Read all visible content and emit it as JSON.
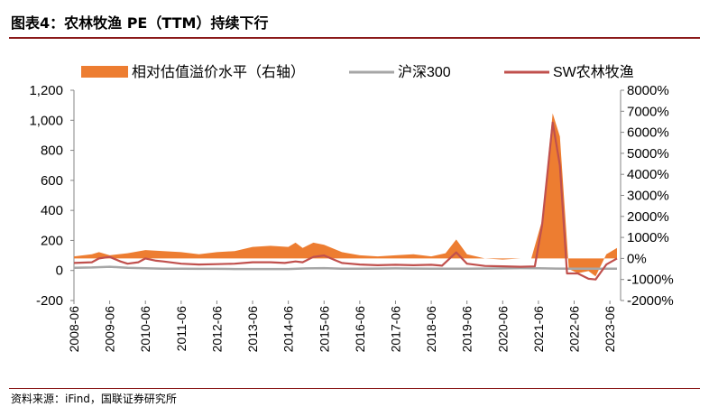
{
  "figure": {
    "title": "图表4：农林牧渔 PE（TTM）持续下行",
    "source": "资料来源：iFind，国联证券研究所"
  },
  "chart_data": {
    "type": "line",
    "legend": [
      {
        "name": "相对估值溢价水平（右轴）",
        "kind": "area",
        "color": "#ed7d31"
      },
      {
        "name": "沪深300",
        "kind": "line",
        "color": "#a6a6a6"
      },
      {
        "name": "SW农林牧渔",
        "kind": "line",
        "color": "#c0504d"
      }
    ],
    "x_tick_labels": [
      "2008-06",
      "2009-06",
      "2010-06",
      "2011-06",
      "2012-06",
      "2013-06",
      "2014-06",
      "2015-06",
      "2016-06",
      "2017-06",
      "2018-06",
      "2019-06",
      "2020-06",
      "2021-06",
      "2022-06",
      "2023-06"
    ],
    "x_range": [
      2008.5,
      2023.8
    ],
    "left_axis": {
      "ylim": [
        -200,
        1200
      ],
      "ticks": [
        -200,
        0,
        200,
        400,
        600,
        800,
        1000,
        1200
      ],
      "tick_labels": [
        "-200",
        "0",
        "200",
        "400",
        "600",
        "800",
        "1,000",
        "1,200"
      ]
    },
    "right_axis": {
      "ylim": [
        -2000,
        8000
      ],
      "ticks": [
        -2000,
        -1000,
        0,
        1000,
        2000,
        3000,
        4000,
        5000,
        6000,
        7000,
        8000
      ],
      "tick_labels": [
        "-2000%",
        "-1000%",
        "0%",
        "1000%",
        "2000%",
        "3000%",
        "4000%",
        "5000%",
        "6000%",
        "7000%",
        "8000%"
      ]
    },
    "series": [
      {
        "name": "相对估值溢价水平（右轴）",
        "axis": "right",
        "points": [
          [
            2008.5,
            100
          ],
          [
            2009.0,
            200
          ],
          [
            2009.2,
            300
          ],
          [
            2009.5,
            150
          ],
          [
            2010.0,
            250
          ],
          [
            2010.5,
            400
          ],
          [
            2011.0,
            350
          ],
          [
            2011.5,
            300
          ],
          [
            2012.0,
            200
          ],
          [
            2012.5,
            300
          ],
          [
            2013.0,
            350
          ],
          [
            2013.5,
            550
          ],
          [
            2014.0,
            600
          ],
          [
            2014.5,
            550
          ],
          [
            2014.7,
            750
          ],
          [
            2014.9,
            500
          ],
          [
            2015.2,
            750
          ],
          [
            2015.5,
            650
          ],
          [
            2016.0,
            300
          ],
          [
            2016.5,
            150
          ],
          [
            2017.0,
            100
          ],
          [
            2017.5,
            150
          ],
          [
            2018.0,
            200
          ],
          [
            2018.5,
            100
          ],
          [
            2018.9,
            250
          ],
          [
            2019.2,
            900
          ],
          [
            2019.5,
            200
          ],
          [
            2020.0,
            0
          ],
          [
            2020.5,
            -50
          ],
          [
            2021.0,
            0
          ],
          [
            2021.3,
            0
          ],
          [
            2021.6,
            1800
          ],
          [
            2021.9,
            6900
          ],
          [
            2022.1,
            5800
          ],
          [
            2022.35,
            -500
          ],
          [
            2022.6,
            -700
          ],
          [
            2022.9,
            -600
          ],
          [
            2023.1,
            -850
          ],
          [
            2023.4,
            200
          ],
          [
            2023.7,
            500
          ]
        ]
      },
      {
        "name": "沪深300",
        "axis": "left",
        "points": [
          [
            2008.5,
            18
          ],
          [
            2009.0,
            20
          ],
          [
            2009.5,
            25
          ],
          [
            2010.0,
            18
          ],
          [
            2010.5,
            15
          ],
          [
            2011.0,
            12
          ],
          [
            2011.5,
            12
          ],
          [
            2012.0,
            11
          ],
          [
            2012.5,
            11
          ],
          [
            2013.0,
            10
          ],
          [
            2013.5,
            10
          ],
          [
            2014.0,
            10
          ],
          [
            2014.5,
            10
          ],
          [
            2015.0,
            14
          ],
          [
            2015.5,
            16
          ],
          [
            2016.0,
            12
          ],
          [
            2016.5,
            12
          ],
          [
            2017.0,
            13
          ],
          [
            2017.5,
            14
          ],
          [
            2018.0,
            13
          ],
          [
            2018.5,
            12
          ],
          [
            2019.0,
            12
          ],
          [
            2019.5,
            12
          ],
          [
            2020.0,
            13
          ],
          [
            2020.5,
            14
          ],
          [
            2021.0,
            16
          ],
          [
            2021.5,
            15
          ],
          [
            2022.0,
            13
          ],
          [
            2022.5,
            12
          ],
          [
            2023.0,
            12
          ],
          [
            2023.7,
            12
          ]
        ]
      },
      {
        "name": "SW农林牧渔",
        "axis": "left",
        "points": [
          [
            2008.5,
            50
          ],
          [
            2009.0,
            55
          ],
          [
            2009.2,
            80
          ],
          [
            2009.5,
            90
          ],
          [
            2009.8,
            60
          ],
          [
            2010.0,
            45
          ],
          [
            2010.3,
            55
          ],
          [
            2010.5,
            80
          ],
          [
            2010.8,
            65
          ],
          [
            2011.0,
            60
          ],
          [
            2011.5,
            45
          ],
          [
            2012.0,
            40
          ],
          [
            2012.5,
            42
          ],
          [
            2013.0,
            45
          ],
          [
            2013.5,
            55
          ],
          [
            2014.0,
            55
          ],
          [
            2014.4,
            50
          ],
          [
            2014.7,
            60
          ],
          [
            2014.9,
            55
          ],
          [
            2015.2,
            90
          ],
          [
            2015.5,
            100
          ],
          [
            2015.8,
            70
          ],
          [
            2016.0,
            50
          ],
          [
            2016.5,
            40
          ],
          [
            2017.0,
            35
          ],
          [
            2017.5,
            38
          ],
          [
            2018.0,
            35
          ],
          [
            2018.5,
            38
          ],
          [
            2018.8,
            32
          ],
          [
            2019.2,
            120
          ],
          [
            2019.5,
            45
          ],
          [
            2020.0,
            30
          ],
          [
            2020.5,
            28
          ],
          [
            2021.0,
            25
          ],
          [
            2021.4,
            27
          ],
          [
            2021.6,
            300
          ],
          [
            2021.9,
            985
          ],
          [
            2022.1,
            700
          ],
          [
            2022.3,
            -20
          ],
          [
            2022.6,
            -20
          ],
          [
            2022.9,
            -55
          ],
          [
            2023.1,
            -60
          ],
          [
            2023.4,
            40
          ],
          [
            2023.7,
            80
          ]
        ]
      }
    ]
  }
}
